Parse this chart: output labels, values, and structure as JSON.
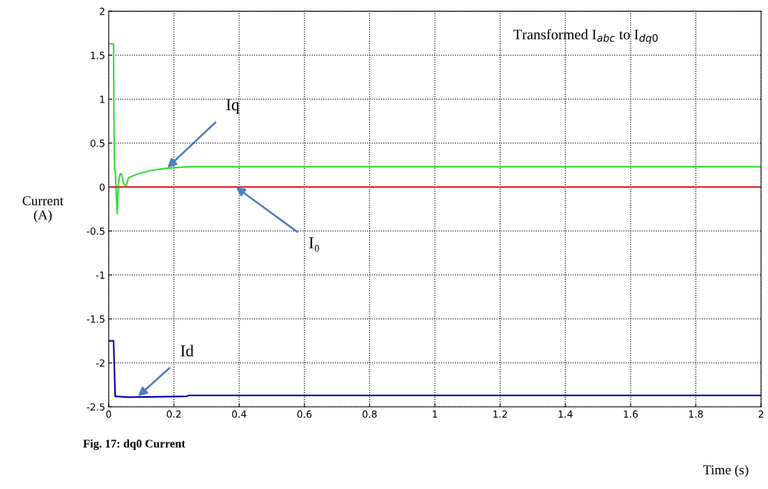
{
  "chart_data": {
    "type": "line",
    "title": "Transformed I$_{abc}$ to I$_{dq0}$",
    "xlabel": "Time (s)",
    "ylabel": "Current\n(A)",
    "series": [
      {
        "color": "#33dd33",
        "x": [
          0,
          0.015,
          0.016,
          0.018,
          0.02,
          0.026,
          0.03,
          0.035,
          0.039,
          0.045,
          0.053,
          0.06,
          0.07,
          0.09,
          0.13,
          0.17,
          0.2,
          0.24,
          2
        ],
        "values": [
          1.63,
          1.63,
          0.8,
          0.2,
          0.2,
          -0.3,
          0.05,
          0.15,
          0.15,
          0.05,
          0,
          0.1,
          0.12,
          0.15,
          0.19,
          0.21,
          0.22,
          0.23,
          0.23
        ]
      },
      {
        "color": "#dd2222",
        "x": [
          0,
          2
        ],
        "values": [
          0,
          0
        ]
      },
      {
        "color": "#0000aa",
        "x": [
          0,
          0.015,
          0.02,
          0.06,
          0.24,
          0.245,
          2
        ],
        "values": [
          -1.75,
          -1.75,
          -2.38,
          -2.39,
          -2.38,
          -2.37,
          -2.37
        ]
      }
    ],
    "annotations": [
      {
        "text": "Iq",
        "x": 0.18,
        "y": 0.22
      },
      {
        "text": "I₀",
        "x": 0.39,
        "y": 0
      },
      {
        "text": "Id",
        "x": 0.09,
        "y": -2.38
      },
      "Fig. 17: dq0 Current"
    ],
    "xlim": [
      0,
      2
    ],
    "xticks": [
      0,
      0.2,
      0.4,
      0.6,
      0.8,
      1,
      1.2,
      1.4,
      1.6,
      1.8,
      2
    ],
    "ylim": [
      -2.5,
      2
    ],
    "yticks": [
      -2.5,
      -2,
      -1.5,
      -1,
      -0.5,
      0,
      0.5,
      1,
      1.5,
      2
    ],
    "grid": true,
    "line_style": "solid"
  }
}
